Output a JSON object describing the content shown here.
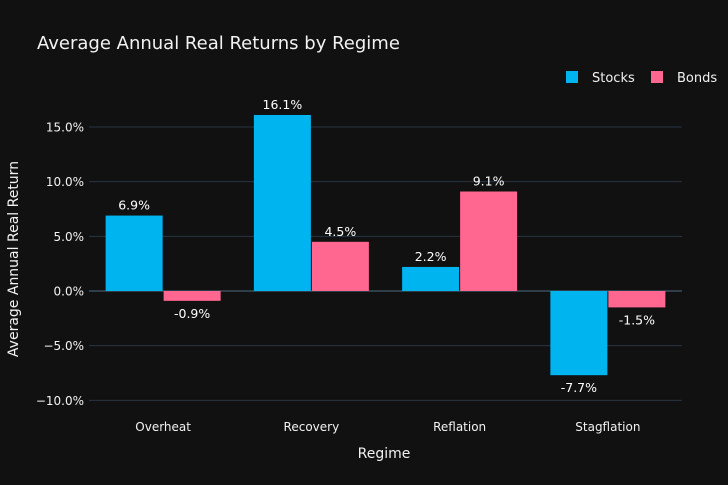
{
  "chart_data": {
    "type": "bar",
    "title": "Average Annual Real Returns by Regime",
    "xlabel": "Regime",
    "ylabel": "Average Annual Real Return",
    "categories": [
      "Overheat",
      "Recovery",
      "Reflation",
      "Stagflation"
    ],
    "series": [
      {
        "name": "Stocks",
        "color": "#00b4f0",
        "values": [
          6.9,
          16.1,
          2.2,
          -7.7
        ],
        "labels": [
          "6.9%",
          "16.1%",
          "2.2%",
          "-7.7%"
        ]
      },
      {
        "name": "Bonds",
        "color": "#ff6690",
        "values": [
          -0.9,
          4.5,
          9.1,
          -1.5
        ],
        "labels": [
          "-0.9%",
          "4.5%",
          "9.1%",
          "-1.5%"
        ]
      }
    ],
    "ylim": [
      -10.0,
      15.0
    ],
    "yticks": [
      -10,
      -5,
      0,
      5,
      10,
      15
    ],
    "ytick_labels": [
      "−10.0%",
      "−5.0%",
      "0.0%",
      "5.0%",
      "10.0%",
      "15.0%"
    ],
    "grid": true,
    "legend_position": "top-right",
    "background": "#111111"
  }
}
